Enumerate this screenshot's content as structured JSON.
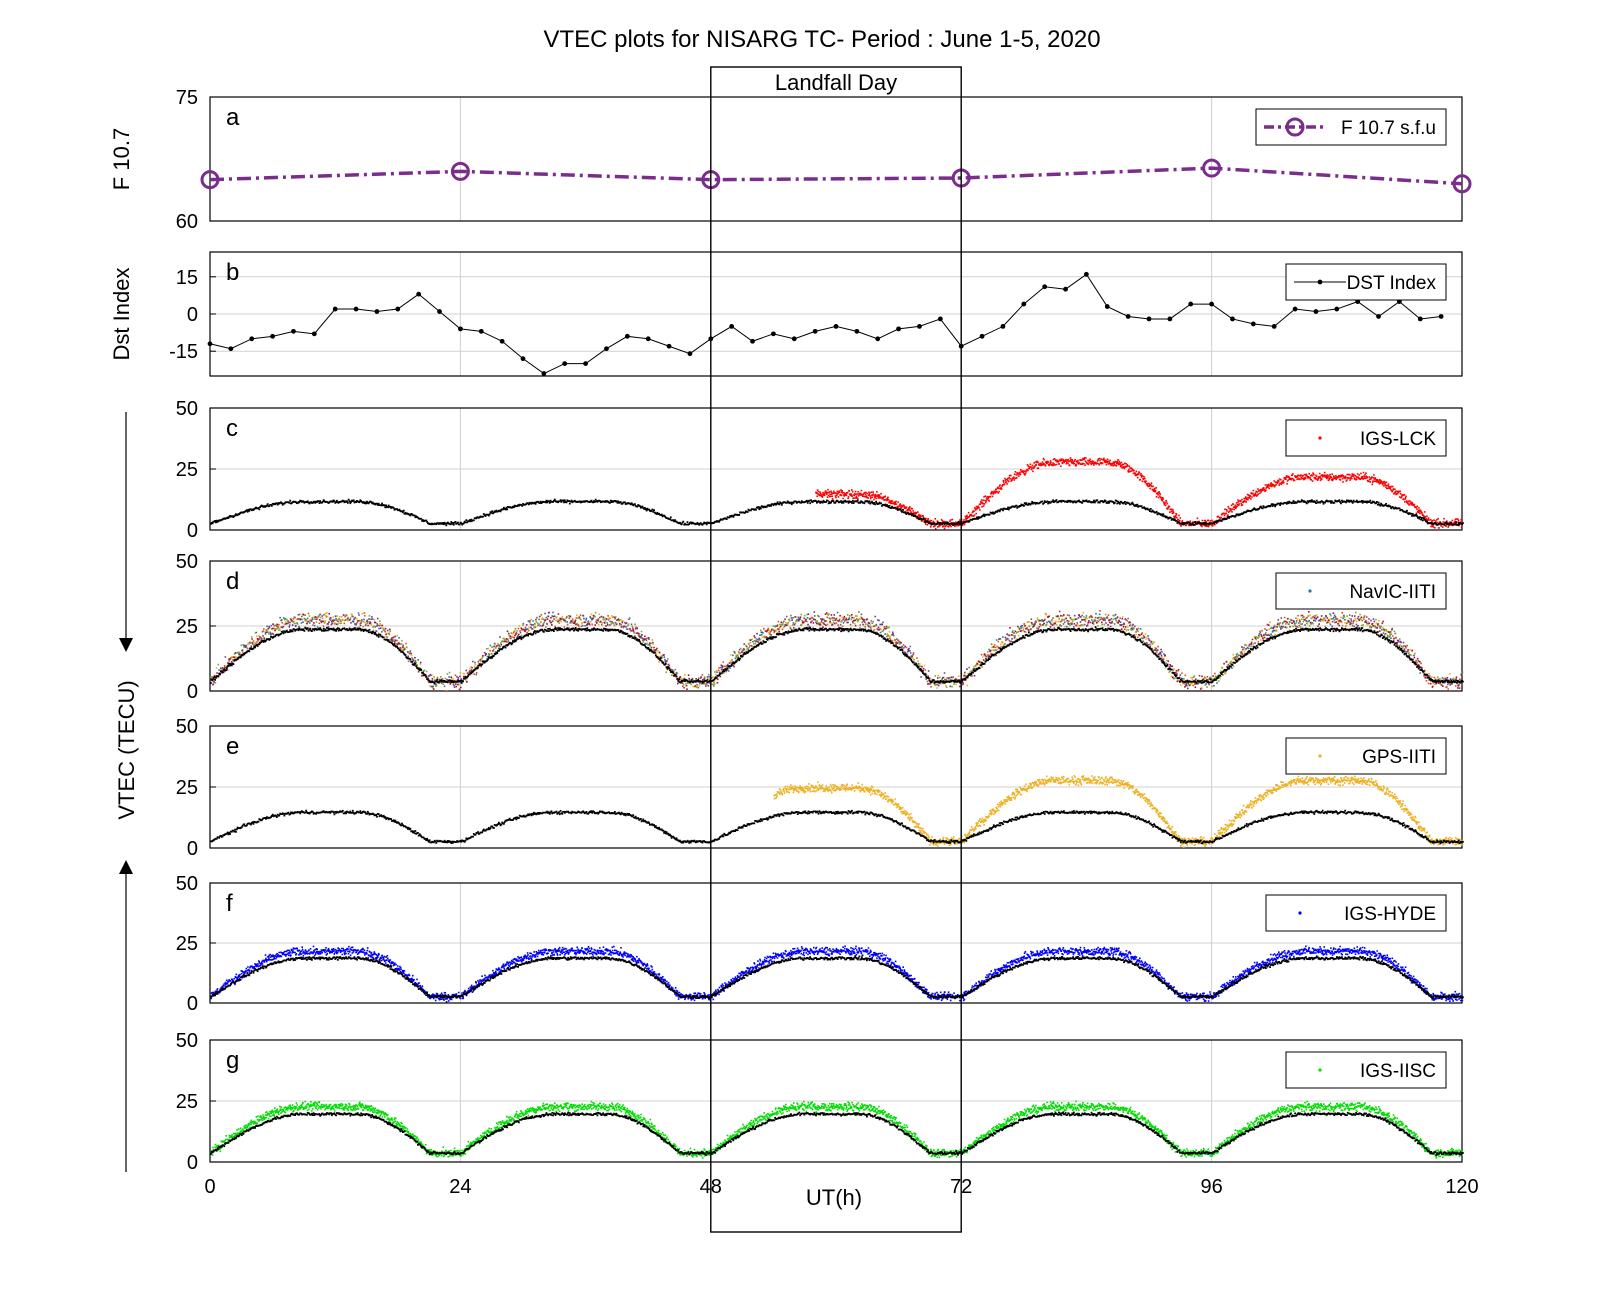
{
  "figure": {
    "title": "VTEC plots for NISARG TC- Period : June 1-5, 2020",
    "xlabel": "UT(h)",
    "shared_ylabel": "VTEC (TECU)",
    "landfall_label": "Landfall Day",
    "landfall_range": [
      48,
      72
    ],
    "xticks": [
      "0",
      "24",
      "48",
      "72",
      "96",
      "120"
    ],
    "xlim": [
      0,
      120
    ]
  },
  "chart_data": [
    {
      "type": "line",
      "panel_label": "a",
      "ylabel": "F 10.7",
      "ylim": [
        60,
        75
      ],
      "yticks": [
        "60",
        "75"
      ],
      "legend": "F 10.7 s.f.u",
      "color": "#7b2d8e",
      "x": [
        0,
        24,
        48,
        72,
        96,
        120
      ],
      "values": [
        65.0,
        66.0,
        65.0,
        65.2,
        66.4,
        64.5
      ]
    },
    {
      "type": "line",
      "panel_label": "b",
      "ylabel": "Dst Index",
      "ylim": [
        -25,
        25
      ],
      "yticks": [
        "-15",
        "0",
        "15"
      ],
      "legend": "DST Index",
      "color": "#000000",
      "x_step": 2,
      "values": [
        -12,
        -14,
        -10,
        -9,
        -7,
        -8,
        2,
        2,
        1,
        2,
        8,
        1,
        -6,
        -7,
        -11,
        -18,
        -24,
        -20,
        -20,
        -14,
        -9,
        -10,
        -13,
        -16,
        -10,
        -5,
        -11,
        -8,
        -10,
        -7,
        -5,
        -7,
        -10,
        -6,
        -5,
        -2,
        -13,
        -9,
        -5,
        4,
        11,
        10,
        16,
        3,
        -1,
        -2,
        -2,
        4,
        4,
        -2,
        -4,
        -5,
        2,
        1,
        2,
        5,
        -1,
        5,
        -2,
        -1
      ]
    },
    {
      "type": "scatter",
      "panel_label": "c",
      "ylabel": "",
      "ylim": [
        0,
        50
      ],
      "yticks": [
        "0",
        "25",
        "50"
      ],
      "legend": "IGS-LCK",
      "color": "#ff0000",
      "baseline": {
        "peak": 12,
        "floor": 3
      },
      "observed_segments": [
        [
          58,
          72
        ],
        [
          72,
          120
        ]
      ],
      "observed_peaks": [
        15,
        28,
        22
      ]
    },
    {
      "type": "scatter",
      "panel_label": "d",
      "ylabel": "",
      "ylim": [
        0,
        50
      ],
      "yticks": [
        "0",
        "25",
        "50"
      ],
      "legend": "NavIC-IITI",
      "color": "#1f77b4",
      "series_colors": [
        "#1f77b4",
        "#d95319",
        "#edb120",
        "#7e2f8e",
        "#77ac30",
        "#a2142f"
      ],
      "baseline": {
        "peak": 24,
        "floor": 4
      }
    },
    {
      "type": "scatter",
      "panel_label": "e",
      "ylabel": "",
      "ylim": [
        0,
        50
      ],
      "yticks": [
        "0",
        "25",
        "50"
      ],
      "legend": "GPS-IITI",
      "color": "#edb120",
      "baseline": {
        "peak": 15,
        "floor": 3
      },
      "observed_segments": [
        [
          54,
          120
        ]
      ],
      "observed_peaks": [
        25,
        28,
        28
      ]
    },
    {
      "type": "scatter",
      "panel_label": "f",
      "ylabel": "",
      "ylim": [
        0,
        50
      ],
      "yticks": [
        "0",
        "25",
        "50"
      ],
      "legend": "IGS-HYDE",
      "color": "#0000ff",
      "baseline": {
        "peak": 19,
        "floor": 3
      }
    },
    {
      "type": "scatter",
      "panel_label": "g",
      "ylabel": "",
      "ylim": [
        0,
        50
      ],
      "yticks": [
        "0",
        "25",
        "50"
      ],
      "legend": "IGS-IISC",
      "color": "#00dd00",
      "baseline": {
        "peak": 20,
        "floor": 4
      }
    }
  ]
}
